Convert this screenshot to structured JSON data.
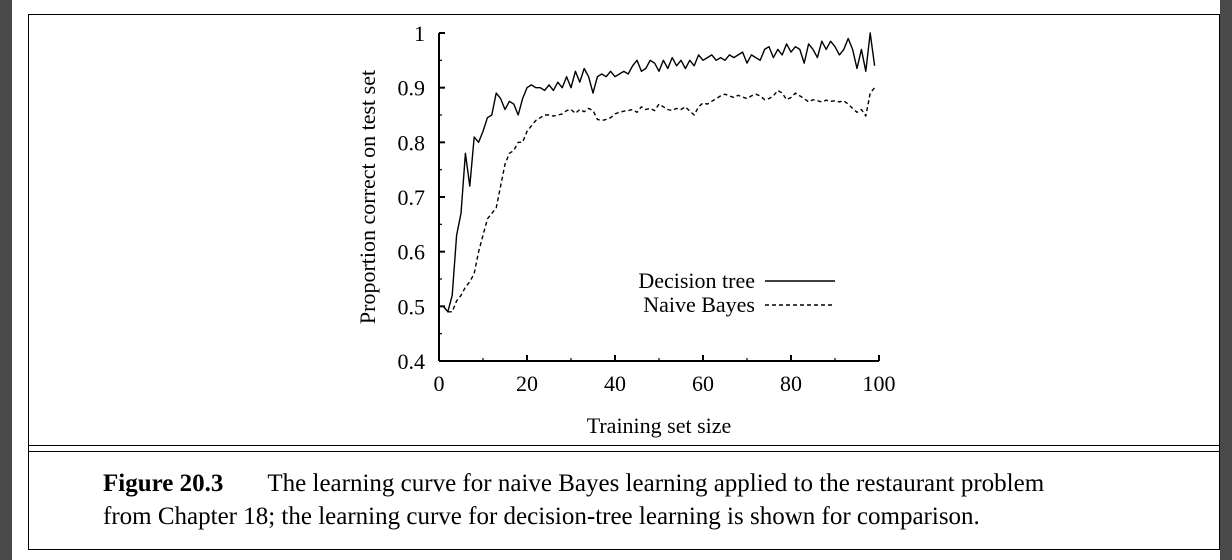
{
  "caption": {
    "figure_label": "Figure 20.3",
    "line1": "The learning curve for naive Bayes learning applied to the restaurant problem",
    "line2": "from Chapter 18; the learning curve for decision-tree learning is shown for comparison."
  },
  "chart_data": {
    "type": "line",
    "title": "",
    "xlabel": "Training set size",
    "ylabel": "Proportion correct on test set",
    "xlim": [
      0,
      100
    ],
    "ylim": [
      0.4,
      1
    ],
    "xticks": [
      "0",
      "20",
      "40",
      "60",
      "80",
      "100"
    ],
    "yticks": [
      "0.4",
      "0.5",
      "0.6",
      "0.7",
      "0.8",
      "0.9",
      "1"
    ],
    "grid": false,
    "legend_position": "center-right",
    "series": [
      {
        "name": "Decision tree",
        "style": "solid",
        "color": "#000000",
        "x": [
          1,
          2,
          3,
          4,
          5,
          6,
          7,
          8,
          9,
          10,
          11,
          12,
          13,
          14,
          15,
          16,
          17,
          18,
          19,
          20,
          21,
          22,
          23,
          24,
          25,
          26,
          27,
          28,
          29,
          30,
          31,
          32,
          33,
          34,
          35,
          36,
          37,
          38,
          39,
          40,
          41,
          42,
          43,
          44,
          45,
          46,
          47,
          48,
          49,
          50,
          51,
          52,
          53,
          54,
          55,
          56,
          57,
          58,
          59,
          60,
          61,
          62,
          63,
          64,
          65,
          66,
          67,
          68,
          69,
          70,
          71,
          72,
          73,
          74,
          75,
          76,
          77,
          78,
          79,
          80,
          81,
          82,
          83,
          84,
          85,
          86,
          87,
          88,
          89,
          90,
          91,
          92,
          93,
          94,
          95,
          96,
          97,
          98,
          99
        ],
        "y": [
          0.5,
          0.49,
          0.52,
          0.63,
          0.67,
          0.78,
          0.72,
          0.81,
          0.8,
          0.82,
          0.845,
          0.85,
          0.89,
          0.88,
          0.86,
          0.875,
          0.87,
          0.85,
          0.88,
          0.9,
          0.905,
          0.9,
          0.9,
          0.895,
          0.905,
          0.895,
          0.91,
          0.9,
          0.92,
          0.9,
          0.93,
          0.91,
          0.935,
          0.92,
          0.89,
          0.92,
          0.925,
          0.92,
          0.93,
          0.92,
          0.925,
          0.93,
          0.925,
          0.94,
          0.95,
          0.93,
          0.935,
          0.95,
          0.945,
          0.93,
          0.95,
          0.935,
          0.955,
          0.94,
          0.95,
          0.935,
          0.95,
          0.94,
          0.96,
          0.95,
          0.955,
          0.96,
          0.95,
          0.955,
          0.95,
          0.96,
          0.955,
          0.96,
          0.965,
          0.945,
          0.96,
          0.955,
          0.95,
          0.97,
          0.975,
          0.955,
          0.97,
          0.96,
          0.98,
          0.965,
          0.975,
          0.97,
          0.945,
          0.98,
          0.97,
          0.955,
          0.985,
          0.97,
          0.985,
          0.975,
          0.96,
          0.97,
          0.99,
          0.97,
          0.935,
          0.97,
          0.93,
          1.0,
          0.94
        ]
      },
      {
        "name": "Naive Bayes",
        "style": "dashed",
        "color": "#000000",
        "x": [
          1,
          2,
          3,
          4,
          5,
          6,
          7,
          8,
          9,
          10,
          11,
          12,
          13,
          14,
          15,
          16,
          17,
          18,
          19,
          20,
          21,
          22,
          23,
          24,
          25,
          26,
          27,
          28,
          29,
          30,
          31,
          32,
          33,
          34,
          35,
          36,
          37,
          38,
          39,
          40,
          41,
          42,
          43,
          44,
          45,
          46,
          47,
          48,
          49,
          50,
          51,
          52,
          53,
          54,
          55,
          56,
          57,
          58,
          59,
          60,
          61,
          62,
          63,
          64,
          65,
          66,
          67,
          68,
          69,
          70,
          71,
          72,
          73,
          74,
          75,
          76,
          77,
          78,
          79,
          80,
          81,
          82,
          83,
          84,
          85,
          86,
          87,
          88,
          89,
          90,
          91,
          92,
          93,
          94,
          95,
          96,
          97,
          98,
          99
        ],
        "y": [
          0.5,
          0.49,
          0.49,
          0.51,
          0.52,
          0.535,
          0.545,
          0.56,
          0.6,
          0.63,
          0.66,
          0.67,
          0.68,
          0.72,
          0.76,
          0.78,
          0.785,
          0.8,
          0.8,
          0.82,
          0.83,
          0.84,
          0.845,
          0.85,
          0.85,
          0.848,
          0.85,
          0.852,
          0.858,
          0.86,
          0.853,
          0.86,
          0.856,
          0.862,
          0.858,
          0.842,
          0.84,
          0.842,
          0.845,
          0.852,
          0.855,
          0.857,
          0.858,
          0.86,
          0.855,
          0.865,
          0.86,
          0.862,
          0.858,
          0.87,
          0.865,
          0.86,
          0.858,
          0.862,
          0.86,
          0.865,
          0.857,
          0.85,
          0.865,
          0.872,
          0.87,
          0.875,
          0.88,
          0.885,
          0.888,
          0.885,
          0.882,
          0.886,
          0.883,
          0.88,
          0.885,
          0.888,
          0.885,
          0.878,
          0.88,
          0.885,
          0.895,
          0.89,
          0.878,
          0.882,
          0.89,
          0.885,
          0.88,
          0.874,
          0.878,
          0.876,
          0.874,
          0.877,
          0.875,
          0.876,
          0.874,
          0.876,
          0.87,
          0.862,
          0.855,
          0.86,
          0.848,
          0.89,
          0.9
        ]
      }
    ]
  }
}
